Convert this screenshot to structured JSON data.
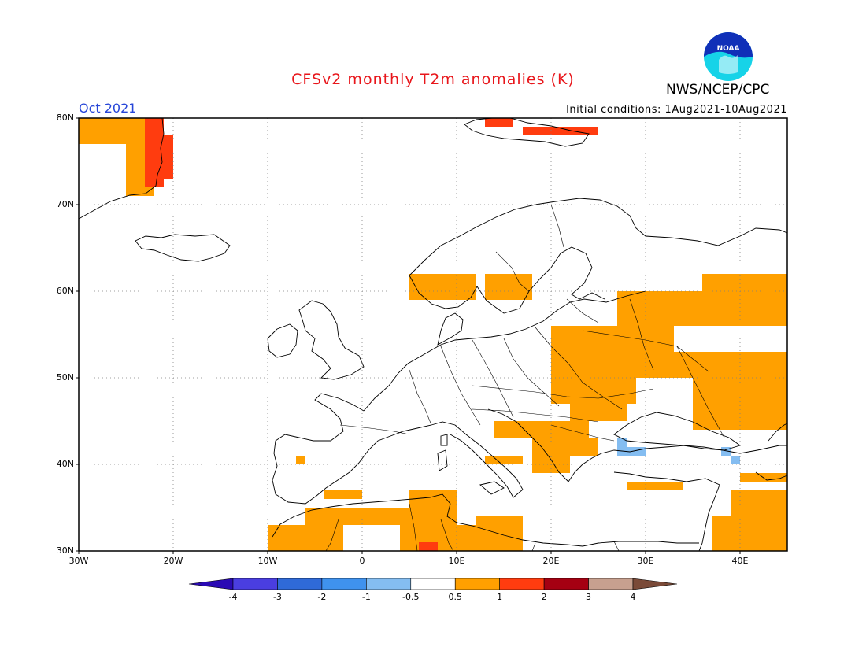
{
  "title": "CFSv2 monthly T2m anomalies (K)",
  "month_label": "Oct 2021",
  "initial_conditions": "Initial conditions: 1Aug2021-10Aug2021",
  "agency": "NWS/NCEP/CPC",
  "logo_text": "NOAA",
  "lat_labels": [
    "80N",
    "70N",
    "60N",
    "50N",
    "40N",
    "30N"
  ],
  "lon_labels": [
    "30W",
    "20W",
    "10W",
    "0",
    "10E",
    "20E",
    "30E",
    "40E"
  ],
  "colorbar": {
    "labels": [
      "-4",
      "-3",
      "-2",
      "-1",
      "-0.5",
      "0.5",
      "1",
      "2",
      "3",
      "4"
    ],
    "colors": [
      "#2a0ab4",
      "#4a3ee0",
      "#2f6ad8",
      "#3f92ee",
      "#84bdf1",
      "#ffffff",
      "#ffa000",
      "#ff3c0f",
      "#a50012",
      "#c7a08f",
      "#7a4a38"
    ]
  },
  "map_extent": {
    "lon_min": -30,
    "lon_max": 45,
    "lat_min": 30,
    "lat_max": 80
  },
  "anomaly_regions": [
    {
      "class": "0.5 to 1",
      "color": "#ffa000",
      "cells": [
        [
          -30,
          80,
          -22,
          77
        ],
        [
          -25,
          77,
          -22,
          71
        ],
        [
          5,
          62,
          12,
          59
        ],
        [
          13,
          62,
          18,
          59
        ],
        [
          20,
          56,
          33,
          53
        ],
        [
          27,
          60,
          45,
          56
        ],
        [
          36,
          62,
          45,
          56
        ],
        [
          20,
          53,
          29,
          47
        ],
        [
          28,
          53,
          37,
          50
        ],
        [
          35,
          53,
          45,
          44
        ],
        [
          22,
          49,
          28,
          45
        ],
        [
          14,
          45,
          24,
          43
        ],
        [
          18,
          43,
          22,
          39
        ],
        [
          13,
          41,
          17,
          40
        ],
        [
          21,
          43,
          25,
          41
        ],
        [
          -7,
          41,
          -6,
          40
        ],
        [
          -4,
          37,
          0,
          36
        ],
        [
          -10,
          33,
          -2,
          30
        ],
        [
          -6,
          35,
          5,
          33
        ],
        [
          5,
          37,
          10,
          33
        ],
        [
          4,
          33,
          12,
          30
        ],
        [
          12,
          34,
          17,
          30
        ],
        [
          28,
          38,
          34,
          37
        ],
        [
          37,
          34,
          40,
          30
        ],
        [
          39,
          37,
          45,
          30
        ],
        [
          40,
          39,
          45,
          38
        ]
      ]
    },
    {
      "class": "1 to 2",
      "color": "#ff3c0f",
      "cells": [
        [
          -23,
          80,
          -21,
          72
        ],
        [
          -22,
          78,
          -20,
          73
        ],
        [
          13,
          80,
          16,
          79
        ],
        [
          17,
          79,
          25,
          78
        ],
        [
          6,
          31,
          8,
          30
        ]
      ]
    },
    {
      "class": "-1 to -0.5",
      "color": "#84bdf1",
      "cells": [
        [
          27,
          43,
          28,
          41
        ],
        [
          28,
          42,
          30,
          41
        ],
        [
          38,
          42,
          39,
          41
        ],
        [
          39,
          41,
          40,
          40
        ]
      ]
    }
  ]
}
